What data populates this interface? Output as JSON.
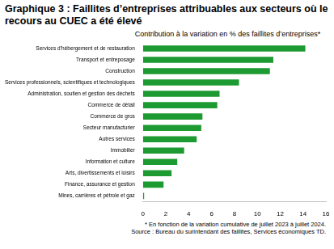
{
  "chart_data": {
    "type": "bar",
    "orientation": "horizontal",
    "title": "Graphique 3 : Faillites d’entreprises attribuables aux secteurs où le recours au CUEC a été élevé",
    "subtitle": "Contribution à la variation en % des faillites d’entreprises*",
    "annotations": [
      "* En fonction de la variation cumulative de juillet 2023 à juillet 2024.",
      "Source : Bureau du surintendant des faillites, Services économiques TD."
    ],
    "categories": [
      "Services d’hébergement et de restauration",
      "Transport et entreposage",
      "Construction",
      "Services professionnels, scientifiques et technologiques",
      "Administration, soutien et gestion des déchets",
      "Commerce de détail",
      "Commerce de gros",
      "Secteur manufacturier",
      "Autres services",
      "Immobilier",
      "Information et culture",
      "Arts, divertissements et loisirs",
      "Finance, assurance et gestion",
      "Mines, carrières et pétrole et gaz"
    ],
    "values": [
      14.2,
      11.4,
      11.1,
      8.4,
      6.7,
      6.5,
      5.2,
      5.1,
      4.7,
      3.6,
      3.0,
      2.5,
      1.8,
      0.1
    ],
    "color": "#1e9a32",
    "xlim": [
      0,
      16
    ],
    "xticks": [
      0,
      2,
      4,
      6,
      8,
      10,
      12,
      14,
      16
    ],
    "grid": false
  }
}
